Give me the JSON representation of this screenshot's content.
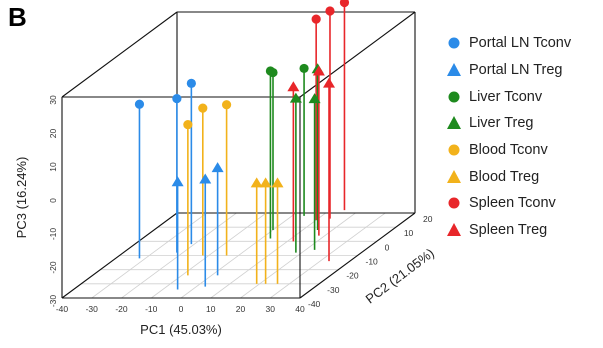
{
  "panel_label": "B",
  "chart_data": {
    "type": "scatter",
    "subtype": "3d-lollipop",
    "xlabel": "PC1 (45.03%)",
    "ylabel": "PC2 (21.05%)",
    "zlabel": "PC3 (16.24%)",
    "xlim": [
      -40,
      40
    ],
    "ylim": [
      -40,
      20
    ],
    "zlim": [
      -30,
      30
    ],
    "x_ticks": [
      -40,
      -30,
      -20,
      -10,
      0,
      10,
      20,
      30,
      40
    ],
    "y_ticks": [
      -40,
      -30,
      -20,
      -10,
      0,
      10,
      20
    ],
    "z_ticks": [
      -30,
      -20,
      -10,
      0,
      10,
      20,
      30
    ],
    "grid": true,
    "legend_position": "right",
    "series": [
      {
        "name": "Portal LN Tconv",
        "marker": "circle",
        "color": "#2B8BE8",
        "points": [
          {
            "x": -32,
            "y": -12,
            "z": 16
          },
          {
            "x": -21,
            "y": -2,
            "z": 18
          },
          {
            "x": -22,
            "y": -8,
            "z": 16
          }
        ]
      },
      {
        "name": "Portal LN Treg",
        "marker": "triangle",
        "color": "#2B8BE8",
        "points": [
          {
            "x": -5,
            "y": -34,
            "z": 2
          },
          {
            "x": 2,
            "y": -24,
            "z": 2
          },
          {
            "x": 3,
            "y": -32,
            "z": 2
          }
        ]
      },
      {
        "name": "Liver Tconv",
        "marker": "circle",
        "color": "#1E8A1E",
        "points": [
          {
            "x": 4,
            "y": 18,
            "z": 14
          },
          {
            "x": 3,
            "y": 2,
            "z": 20
          },
          {
            "x": 0,
            "y": 8,
            "z": 17
          }
        ]
      },
      {
        "name": "Liver Treg",
        "marker": "triangle",
        "color": "#1E8A1E",
        "points": [
          {
            "x": 15,
            "y": 8,
            "z": 18
          },
          {
            "x": 23,
            "y": -6,
            "z": 15
          },
          {
            "x": 18,
            "y": -8,
            "z": 16
          }
        ]
      },
      {
        "name": "Blood Tconv",
        "marker": "circle",
        "color": "#F2B21B",
        "points": [
          {
            "x": -12,
            "y": -10,
            "z": 14
          },
          {
            "x": -8,
            "y": -24,
            "z": 15
          },
          {
            "x": -4,
            "y": -10,
            "z": 15
          }
        ]
      },
      {
        "name": "Blood Treg",
        "marker": "triangle",
        "color": "#F2B21B",
        "points": [
          {
            "x": 19,
            "y": -30,
            "z": 0
          },
          {
            "x": 22,
            "y": -30,
            "z": 0
          },
          {
            "x": 26,
            "y": -30,
            "z": 0
          }
        ]
      },
      {
        "name": "Spleen Tconv",
        "marker": "circle",
        "color": "#E8262A",
        "points": [
          {
            "x": 10,
            "y": 15,
            "z": 30
          },
          {
            "x": 15,
            "y": 22,
            "z": 32
          },
          {
            "x": 14,
            "y": 16,
            "z": 32
          }
        ]
      },
      {
        "name": "Spleen Treg",
        "marker": "triangle",
        "color": "#E8262A",
        "points": [
          {
            "x": 12,
            "y": 0,
            "z": 16
          },
          {
            "x": 18,
            "y": 4,
            "z": 19
          },
          {
            "x": 33,
            "y": -14,
            "z": 23
          }
        ]
      }
    ]
  }
}
